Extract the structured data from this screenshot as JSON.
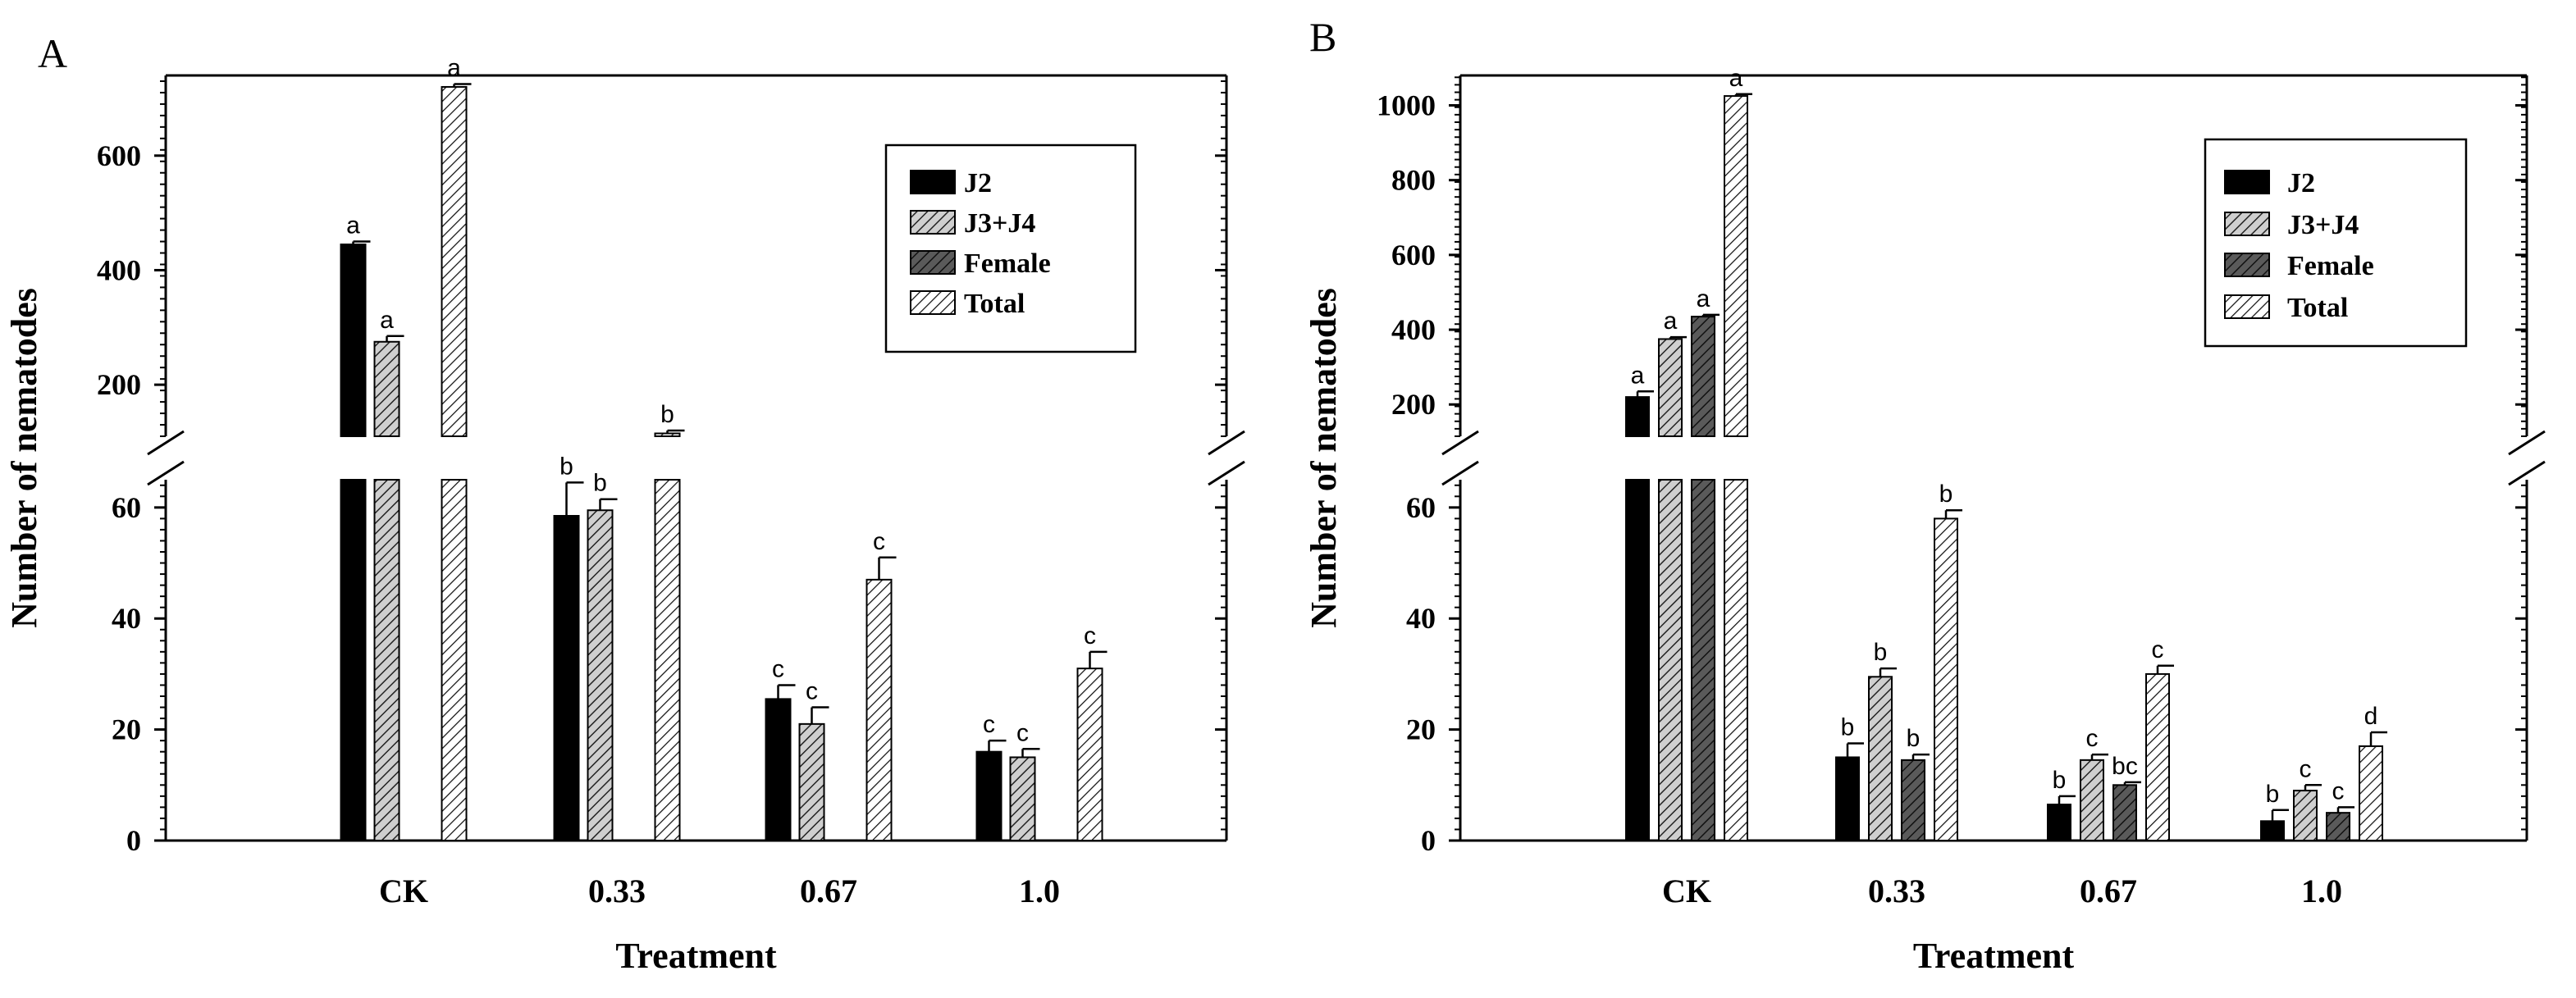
{
  "chart_data": [
    {
      "panel": "A",
      "type": "bar",
      "xlabel": "Treatment",
      "ylabel": "Number of nematodes",
      "categories": [
        "CK",
        "0.33",
        "0.67",
        "1.0"
      ],
      "axis_break": {
        "lower_range": [
          0,
          65
        ],
        "upper_range": [
          110,
          740
        ]
      },
      "lower_ticks": [
        "0",
        "20",
        "40",
        "60"
      ],
      "upper_ticks": [
        "200",
        "400",
        "600"
      ],
      "lower_tick_values": [
        0,
        20,
        40,
        60
      ],
      "upper_tick_values": [
        200,
        400,
        600
      ],
      "legend_position": "top-right",
      "series": [
        {
          "name": "J2",
          "pattern": "solid",
          "values": [
            445,
            58.5,
            25.5,
            16
          ],
          "errors": [
            5,
            6,
            2.5,
            2
          ],
          "labels": [
            "a",
            "b",
            "c",
            "c"
          ]
        },
        {
          "name": "J3+J4",
          "pattern": "hatch-light",
          "values": [
            275,
            59.5,
            21,
            15
          ],
          "errors": [
            10,
            2,
            3,
            1.5
          ],
          "labels": [
            "a",
            "b",
            "c",
            "c"
          ]
        },
        {
          "name": "Female",
          "pattern": "hatch-dark",
          "values": [
            null,
            null,
            null,
            null
          ],
          "errors": [
            null,
            null,
            null,
            null
          ],
          "labels": [
            "",
            "",
            "",
            ""
          ]
        },
        {
          "name": "Total",
          "pattern": "hatch-white",
          "values": [
            720,
            115,
            47,
            31
          ],
          "errors": [
            5,
            5,
            4,
            3
          ],
          "labels": [
            "a",
            "b",
            "c",
            "c"
          ]
        }
      ]
    },
    {
      "panel": "B",
      "type": "bar",
      "xlabel": "Treatment",
      "ylabel": "Number of nematodes",
      "categories": [
        "CK",
        "0.33",
        "0.67",
        "1.0"
      ],
      "axis_break": {
        "lower_range": [
          0,
          65
        ],
        "upper_range": [
          115,
          1080
        ]
      },
      "lower_ticks": [
        "0",
        "20",
        "40",
        "60"
      ],
      "upper_ticks": [
        "200",
        "400",
        "600",
        "800",
        "1000"
      ],
      "lower_tick_values": [
        0,
        20,
        40,
        60
      ],
      "upper_tick_values": [
        200,
        400,
        600,
        800,
        1000
      ],
      "legend_position": "top-right",
      "series": [
        {
          "name": "J2",
          "pattern": "solid",
          "values": [
            220,
            15,
            6.5,
            3.5
          ],
          "errors": [
            15,
            2.5,
            1.5,
            2
          ],
          "labels": [
            "a",
            "b",
            "b",
            "b"
          ]
        },
        {
          "name": "J3+J4",
          "pattern": "hatch-light",
          "values": [
            375,
            29.5,
            14.5,
            9
          ],
          "errors": [
            5,
            1.5,
            1,
            1
          ],
          "labels": [
            "a",
            "b",
            "c",
            "c"
          ]
        },
        {
          "name": "Female",
          "pattern": "hatch-dark",
          "values": [
            435,
            14.5,
            10,
            5
          ],
          "errors": [
            5,
            1,
            0.5,
            1
          ],
          "labels": [
            "a",
            "b",
            "bc",
            "c"
          ]
        },
        {
          "name": "Total",
          "pattern": "hatch-white",
          "values": [
            1025,
            58,
            30,
            17
          ],
          "errors": [
            5,
            1.5,
            1.5,
            2.5
          ],
          "labels": [
            "a",
            "b",
            "c",
            "d"
          ]
        }
      ]
    }
  ]
}
